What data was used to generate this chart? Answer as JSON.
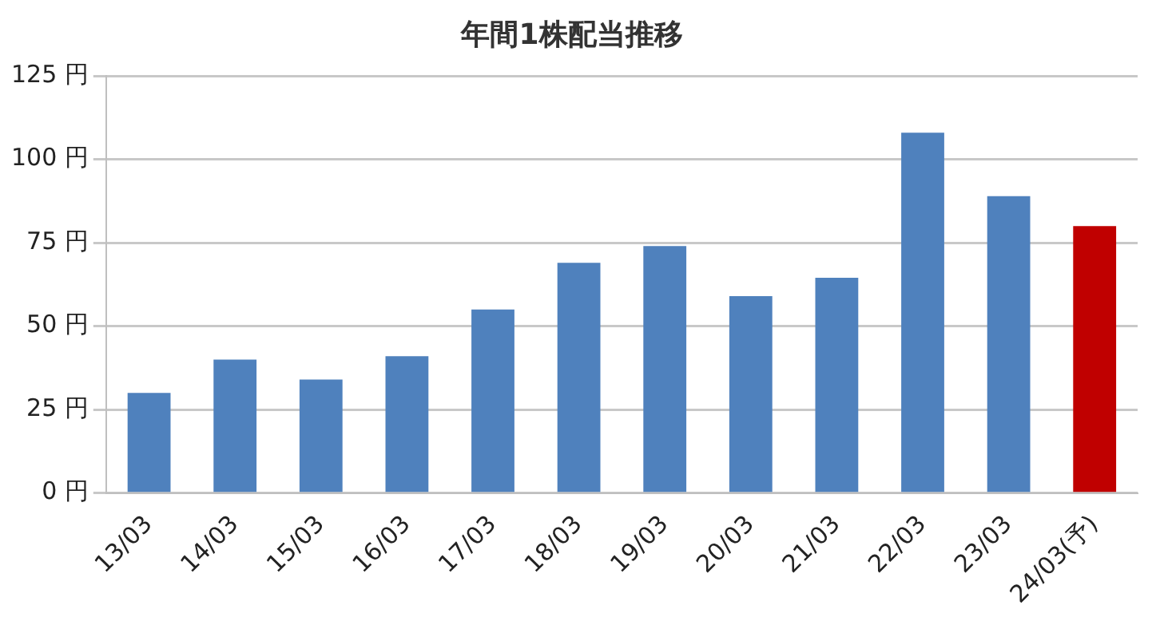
{
  "chart_data": {
    "type": "bar",
    "title": "年間1株配当推移",
    "categories": [
      "13/03",
      "14/03",
      "15/03",
      "16/03",
      "17/03",
      "18/03",
      "19/03",
      "20/03",
      "21/03",
      "22/03",
      "23/03",
      "24/03(予)"
    ],
    "values": [
      30,
      40,
      34,
      41,
      55,
      69,
      74,
      59,
      64.5,
      108,
      89,
      80
    ],
    "colors": [
      "#4f81bd",
      "#4f81bd",
      "#4f81bd",
      "#4f81bd",
      "#4f81bd",
      "#4f81bd",
      "#4f81bd",
      "#4f81bd",
      "#4f81bd",
      "#4f81bd",
      "#4f81bd",
      "#c00000"
    ],
    "ylim": [
      0,
      125
    ],
    "yticks": [
      {
        "value": 0,
        "label": "0 円"
      },
      {
        "value": 25,
        "label": "25 円"
      },
      {
        "value": 50,
        "label": "50 円"
      },
      {
        "value": 75,
        "label": "75 円"
      },
      {
        "value": 100,
        "label": "100 円"
      },
      {
        "value": 125,
        "label": "125 円"
      }
    ],
    "grid": "y",
    "legend": false
  }
}
